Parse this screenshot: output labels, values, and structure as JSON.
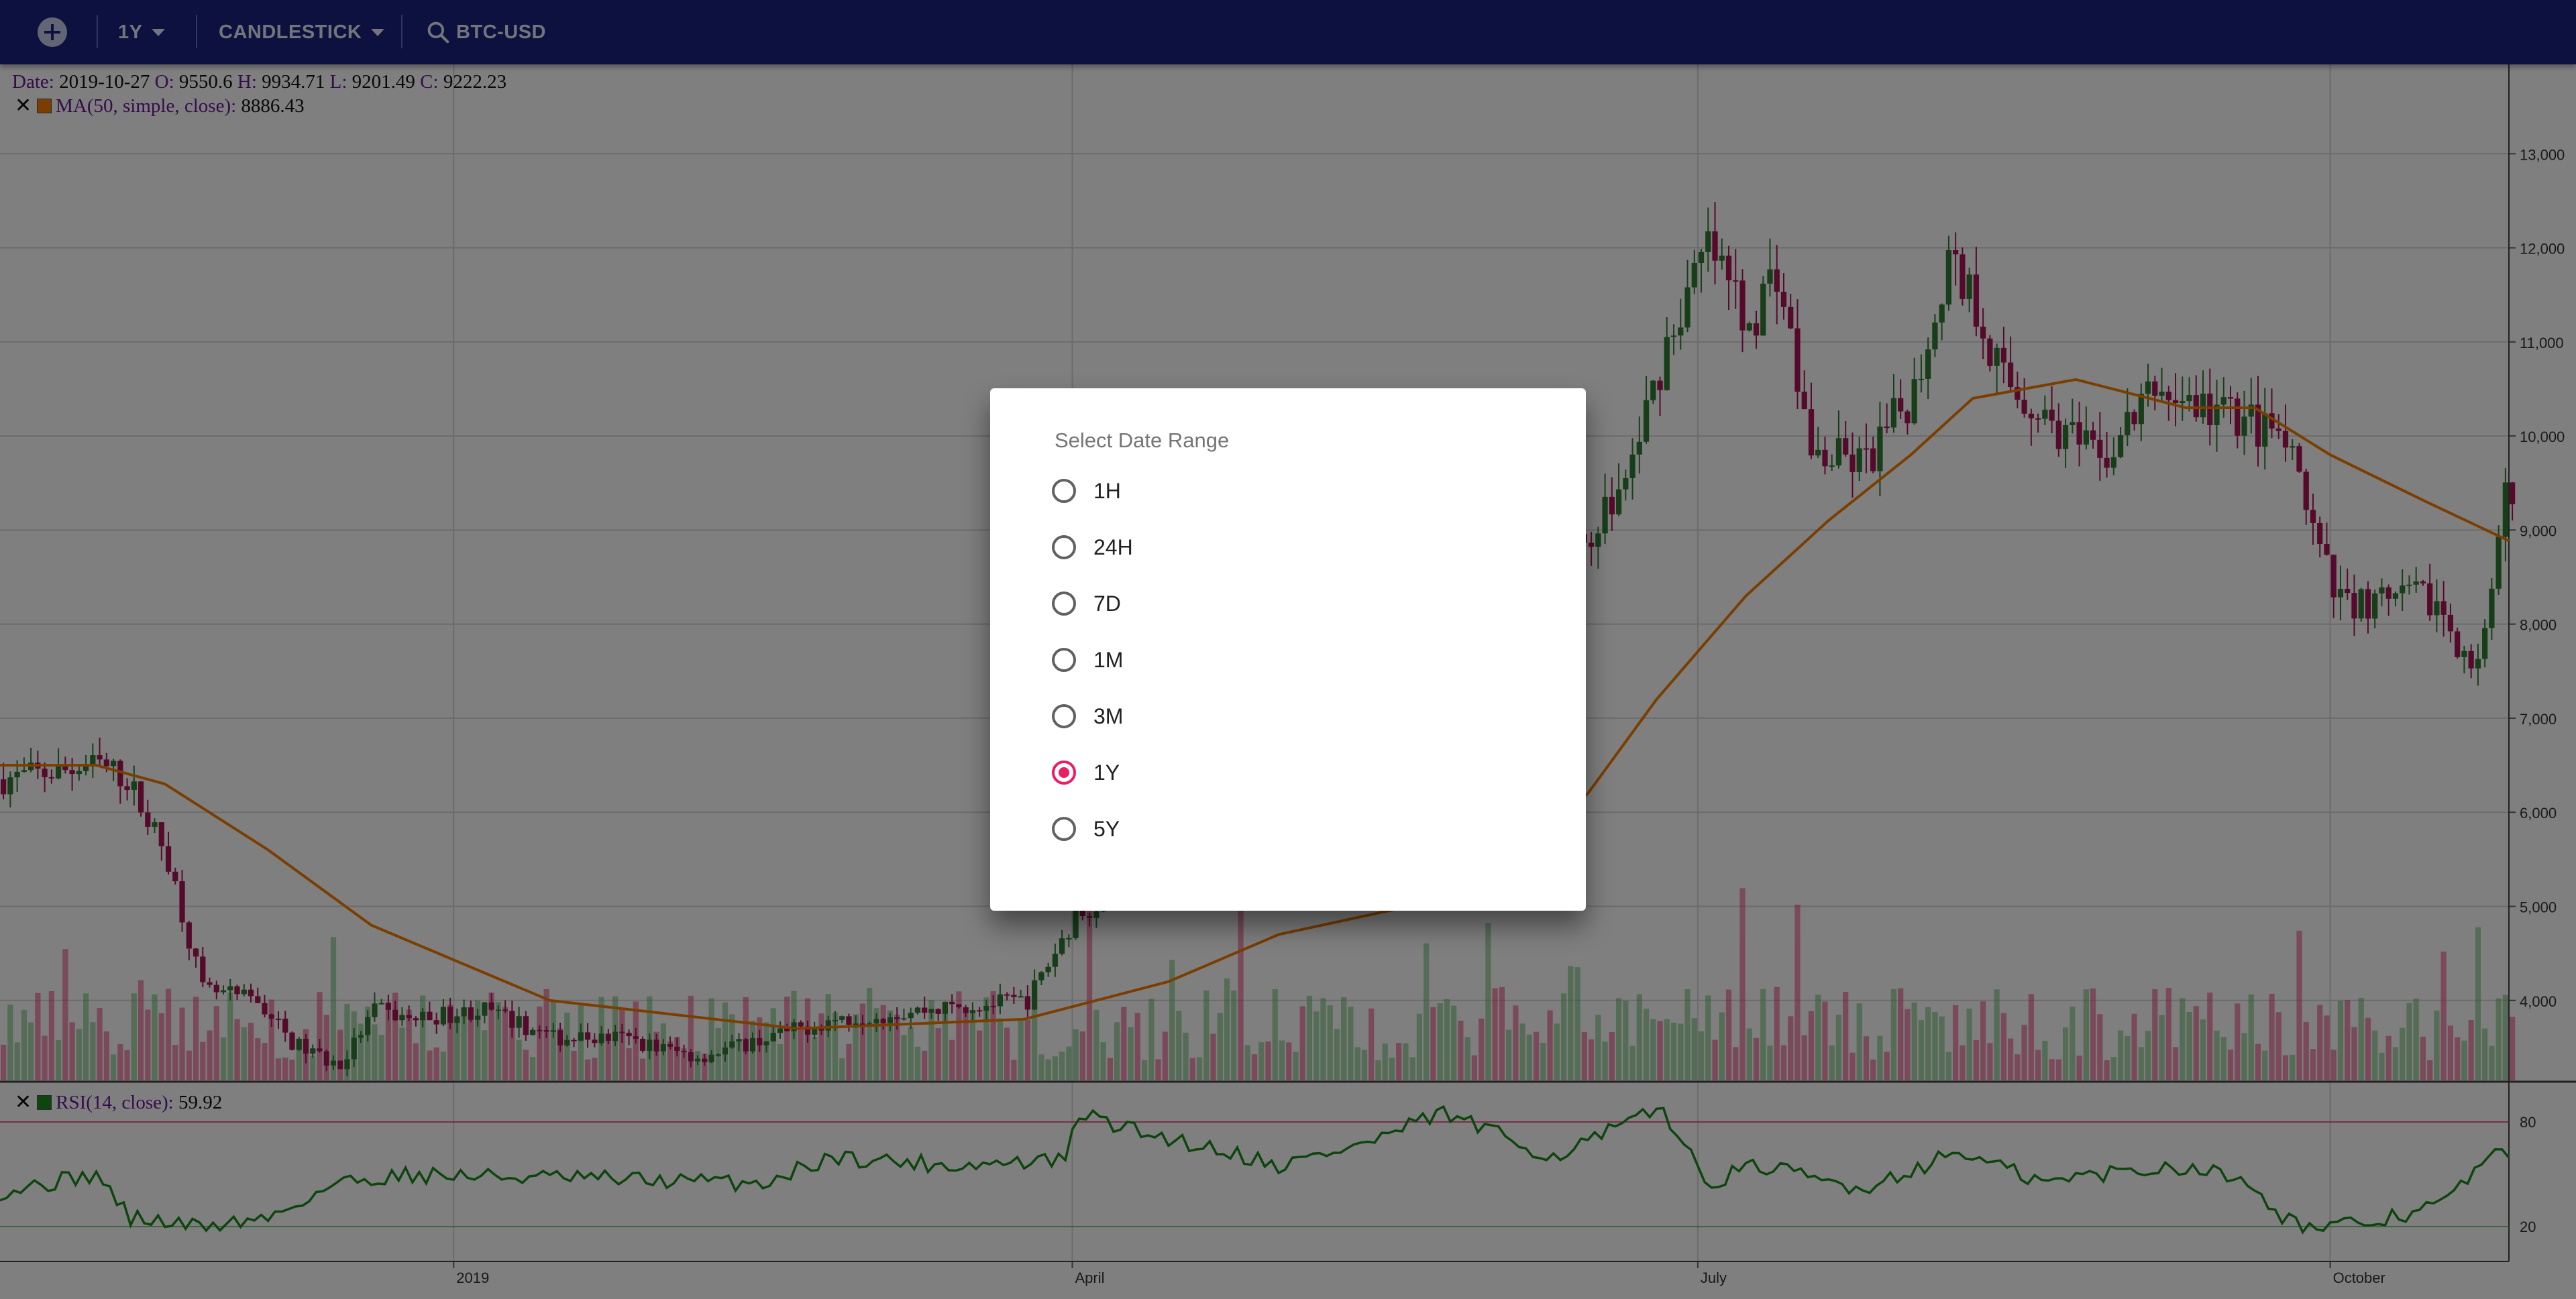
{
  "toolbar": {
    "add_icon": "add-circle-icon",
    "range_label": "1Y",
    "chart_type_label": "CANDLESTICK",
    "symbol_label": "BTC-USD",
    "search_icon": "search-icon",
    "bar_color": "#1a237e"
  },
  "legend": {
    "ohlc": {
      "date_key": "Date:",
      "date": "2019-10-27",
      "open_key": "O:",
      "open": "9550.6",
      "high_key": "H:",
      "high": "9934.71",
      "low_key": "L:",
      "low": "9201.49",
      "close_key": "C:",
      "close": "9222.23"
    },
    "ma": {
      "label": "MA(50, simple, close):",
      "value": "8886.43",
      "color": "#f57c00"
    },
    "rsi": {
      "label": "RSI(14, close):",
      "value": "59.92",
      "color": "#1b8a1b"
    }
  },
  "chart_data": {
    "type": "candlestick",
    "symbol": "BTC-USD",
    "range": "1Y",
    "x_tick_labels": [
      "2019",
      "April",
      "July",
      "October"
    ],
    "price_axis_ticks": [
      "13,000",
      "12,000",
      "11,000",
      "10,000",
      "9,000",
      "8,000",
      "7,000",
      "6,000",
      "5,000",
      "4,000"
    ],
    "price_range": [
      3150,
      13950
    ],
    "rsi_axis_ticks": [
      "80",
      "20"
    ],
    "rsi_range": [
      0,
      100
    ],
    "colors": {
      "up": "#2e7d32",
      "down": "#ad1457",
      "ma": "#f57c00",
      "rsi": "#1b8a1b"
    },
    "close_path": {
      "dates": [
        "2018-10-27",
        "2018-11-10",
        "2018-11-14",
        "2018-11-20",
        "2018-11-25",
        "2018-12-03",
        "2018-12-08",
        "2018-12-15",
        "2018-12-20",
        "2018-12-25",
        "2019-01-05",
        "2019-01-15",
        "2019-01-25",
        "2019-02-05",
        "2019-02-15",
        "2019-02-25",
        "2019-03-10",
        "2019-03-25",
        "2019-04-01",
        "2019-04-05",
        "2019-04-15",
        "2019-04-25",
        "2019-05-05",
        "2019-05-12",
        "2019-05-20",
        "2019-05-25",
        "2019-06-05",
        "2019-06-15",
        "2019-06-20",
        "2019-06-26",
        "2019-07-02",
        "2019-07-08",
        "2019-07-12",
        "2019-07-17",
        "2019-07-25",
        "2019-08-01",
        "2019-08-06",
        "2019-08-10",
        "2019-08-14",
        "2019-08-20",
        "2019-08-28",
        "2019-09-05",
        "2019-09-12",
        "2019-09-18",
        "2019-09-24",
        "2019-10-01",
        "2019-10-08",
        "2019-10-15",
        "2019-10-22",
        "2019-10-24",
        "2019-10-26",
        "2019-10-27"
      ],
      "values": [
        6350,
        6500,
        6350,
        5500,
        4100,
        4000,
        3550,
        3300,
        3900,
        3800,
        3900,
        3600,
        3600,
        3400,
        3600,
        3800,
        3900,
        4000,
        4900,
        5100,
        5300,
        5500,
        5800,
        7200,
        8000,
        8200,
        7900,
        9000,
        9500,
        11000,
        12000,
        11200,
        11800,
        9800,
        9700,
        10500,
        11900,
        11400,
        10600,
        10200,
        9700,
        10500,
        10300,
        10200,
        9900,
        8300,
        8200,
        8300,
        7500,
        8200,
        9300,
        9222
      ]
    },
    "ma_path": {
      "dates": [
        "2018-10-27",
        "2018-11-10",
        "2018-11-20",
        "2018-12-05",
        "2018-12-20",
        "2019-01-15",
        "2019-02-20",
        "2019-03-25",
        "2019-04-15",
        "2019-05-01",
        "2019-05-20",
        "2019-06-05",
        "2019-06-15",
        "2019-06-25",
        "2019-07-08",
        "2019-07-20",
        "2019-08-01",
        "2019-08-10",
        "2019-08-25",
        "2019-09-10",
        "2019-09-20",
        "2019-10-01",
        "2019-10-15",
        "2019-10-27"
      ],
      "values": [
        6500,
        6500,
        6300,
        5600,
        4800,
        4000,
        3700,
        3800,
        4200,
        4700,
        5000,
        5600,
        6200,
        7200,
        8300,
        9100,
        9800,
        10400,
        10600,
        10300,
        10300,
        9800,
        9300,
        8886
      ]
    },
    "rsi_path": {
      "dates": [
        "2018-10-27",
        "2018-11-10",
        "2018-11-15",
        "2018-11-25",
        "2018-12-05",
        "2018-12-15",
        "2018-12-25",
        "2019-01-15",
        "2019-02-15",
        "2019-02-25",
        "2019-03-15",
        "2019-03-31",
        "2019-04-02",
        "2019-04-10",
        "2019-04-25",
        "2019-05-01",
        "2019-05-14",
        "2019-05-25",
        "2019-06-10",
        "2019-06-26",
        "2019-07-02",
        "2019-07-10",
        "2019-07-17",
        "2019-07-25",
        "2019-08-08",
        "2019-08-20",
        "2019-08-28",
        "2019-09-10",
        "2019-09-20",
        "2019-09-24",
        "2019-09-30",
        "2019-10-10",
        "2019-10-18",
        "2019-10-24",
        "2019-10-27"
      ],
      "values": [
        40,
        50,
        25,
        20,
        25,
        45,
        50,
        48,
        45,
        60,
        55,
        58,
        85,
        75,
        62,
        55,
        68,
        85,
        60,
        88,
        45,
        55,
        48,
        42,
        63,
        45,
        50,
        55,
        45,
        25,
        18,
        25,
        35,
        60,
        59.92
      ]
    }
  },
  "date_range_dialog": {
    "title": "Select Date Range",
    "options": [
      "1H",
      "24H",
      "7D",
      "1M",
      "3M",
      "1Y",
      "5Y"
    ],
    "selected": "1Y",
    "accent_color": "#e91e63"
  }
}
